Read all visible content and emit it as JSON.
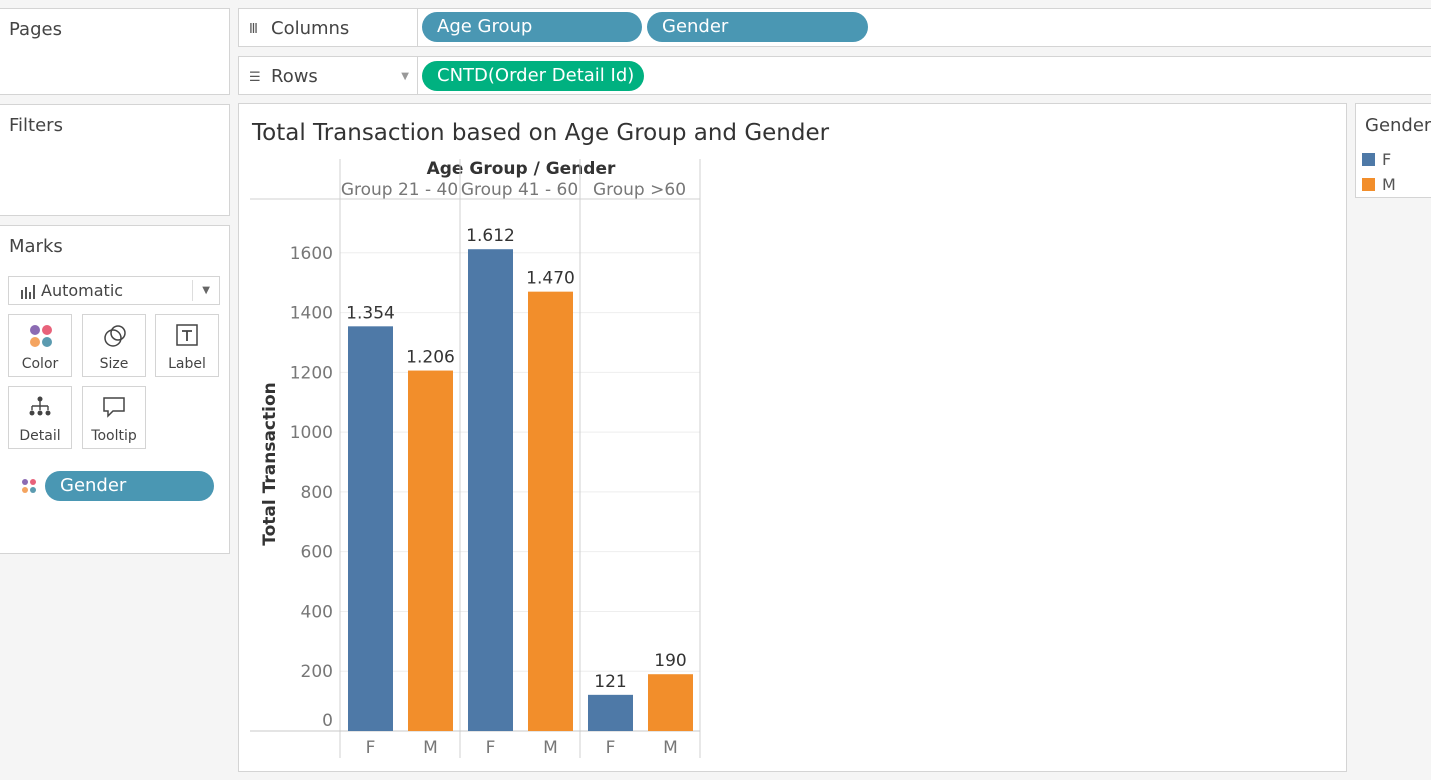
{
  "shelves": {
    "pages": {
      "label": "Pages"
    },
    "filters": {
      "label": "Filters"
    },
    "columns": {
      "label": "Columns",
      "pills": [
        "Age Group",
        "Gender"
      ]
    },
    "rows": {
      "label": "Rows",
      "pills": [
        "CNTD(Order Detail Id)"
      ]
    }
  },
  "marks": {
    "label": "Marks",
    "type": "Automatic",
    "buttons": {
      "color": "Color",
      "size": "Size",
      "label": "Label",
      "detail": "Detail",
      "tooltip": "Tooltip"
    },
    "color_pill": "Gender"
  },
  "legend": {
    "title": "Gender",
    "items": [
      {
        "label": "F",
        "color": "#4e79a7"
      },
      {
        "label": "M",
        "color": "#f28e2b"
      }
    ]
  },
  "colors": {
    "pill_dimension": "#4a97b3",
    "pill_measure": "#00b180"
  },
  "chart_data": {
    "type": "bar",
    "title": "Total Transaction based on Age Group and Gender",
    "header_title": "Age Group  /  Gender",
    "ylabel": "Total Transaction",
    "ylim": [
      0,
      1780
    ],
    "yticks": [
      0,
      200,
      400,
      600,
      800,
      1000,
      1200,
      1400,
      1600
    ],
    "grid": true,
    "groups": [
      {
        "name": "Group 21 - 40",
        "bars": [
          {
            "gender": "F",
            "value": 1354,
            "label": "1.354"
          },
          {
            "gender": "M",
            "value": 1206,
            "label": "1.206"
          }
        ]
      },
      {
        "name": "Group 41 - 60",
        "bars": [
          {
            "gender": "F",
            "value": 1612,
            "label": "1.612"
          },
          {
            "gender": "M",
            "value": 1470,
            "label": "1.470"
          }
        ]
      },
      {
        "name": "Group >60",
        "bars": [
          {
            "gender": "F",
            "value": 121,
            "label": "121"
          },
          {
            "gender": "M",
            "value": 190,
            "label": "190"
          }
        ]
      }
    ]
  }
}
